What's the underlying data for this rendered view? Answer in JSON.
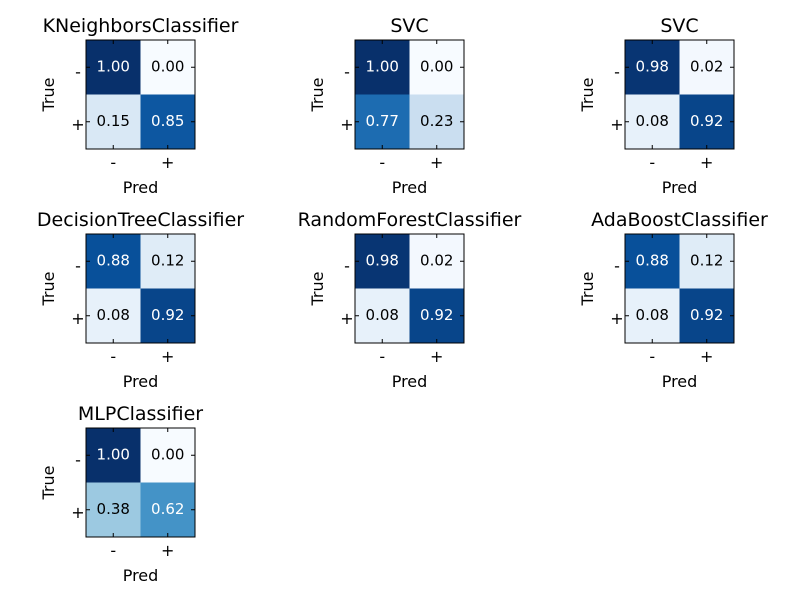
{
  "colors": {
    "colormap": "Blues",
    "light_text": "#ffffff",
    "dark_text": "#000000"
  },
  "chart_data": [
    {
      "type": "heatmap",
      "title": "KNeighborsClassifier",
      "xlabel": "Pred",
      "ylabel": "True",
      "x_ticks": [
        "-",
        "+"
      ],
      "y_ticks": [
        "-",
        "+"
      ],
      "values": [
        [
          1.0,
          0.0
        ],
        [
          0.15,
          0.85
        ]
      ],
      "labels": [
        [
          "1.00",
          "0.00"
        ],
        [
          "0.15",
          "0.85"
        ]
      ],
      "vmin": 0,
      "vmax": 1
    },
    {
      "type": "heatmap",
      "title": "SVC",
      "xlabel": "Pred",
      "ylabel": "True",
      "x_ticks": [
        "-",
        "+"
      ],
      "y_ticks": [
        "-",
        "+"
      ],
      "values": [
        [
          1.0,
          0.0
        ],
        [
          0.77,
          0.23
        ]
      ],
      "labels": [
        [
          "1.00",
          "0.00"
        ],
        [
          "0.77",
          "0.23"
        ]
      ],
      "vmin": 0,
      "vmax": 1
    },
    {
      "type": "heatmap",
      "title": "SVC",
      "xlabel": "Pred",
      "ylabel": "True",
      "x_ticks": [
        "-",
        "+"
      ],
      "y_ticks": [
        "-",
        "+"
      ],
      "values": [
        [
          0.98,
          0.02
        ],
        [
          0.08,
          0.92
        ]
      ],
      "labels": [
        [
          "0.98",
          "0.02"
        ],
        [
          "0.08",
          "0.92"
        ]
      ],
      "vmin": 0,
      "vmax": 1
    },
    {
      "type": "heatmap",
      "title": "DecisionTreeClassifier",
      "xlabel": "Pred",
      "ylabel": "True",
      "x_ticks": [
        "-",
        "+"
      ],
      "y_ticks": [
        "-",
        "+"
      ],
      "values": [
        [
          0.88,
          0.12
        ],
        [
          0.08,
          0.92
        ]
      ],
      "labels": [
        [
          "0.88",
          "0.12"
        ],
        [
          "0.08",
          "0.92"
        ]
      ],
      "vmin": 0,
      "vmax": 1
    },
    {
      "type": "heatmap",
      "title": "RandomForestClassifier",
      "xlabel": "Pred",
      "ylabel": "True",
      "x_ticks": [
        "-",
        "+"
      ],
      "y_ticks": [
        "-",
        "+"
      ],
      "values": [
        [
          0.98,
          0.02
        ],
        [
          0.08,
          0.92
        ]
      ],
      "labels": [
        [
          "0.98",
          "0.02"
        ],
        [
          "0.08",
          "0.92"
        ]
      ],
      "vmin": 0,
      "vmax": 1
    },
    {
      "type": "heatmap",
      "title": "AdaBoostClassifier",
      "xlabel": "Pred",
      "ylabel": "True",
      "x_ticks": [
        "-",
        "+"
      ],
      "y_ticks": [
        "-",
        "+"
      ],
      "values": [
        [
          0.88,
          0.12
        ],
        [
          0.08,
          0.92
        ]
      ],
      "labels": [
        [
          "0.88",
          "0.12"
        ],
        [
          "0.08",
          "0.92"
        ]
      ],
      "vmin": 0,
      "vmax": 1
    },
    {
      "type": "heatmap",
      "title": "MLPClassifier",
      "xlabel": "Pred",
      "ylabel": "True",
      "x_ticks": [
        "-",
        "+"
      ],
      "y_ticks": [
        "-",
        "+"
      ],
      "values": [
        [
          1.0,
          0.0
        ],
        [
          0.38,
          0.62
        ]
      ],
      "labels": [
        [
          "1.00",
          "0.00"
        ],
        [
          "0.38",
          "0.62"
        ]
      ],
      "vmin": 0,
      "vmax": 1
    }
  ]
}
